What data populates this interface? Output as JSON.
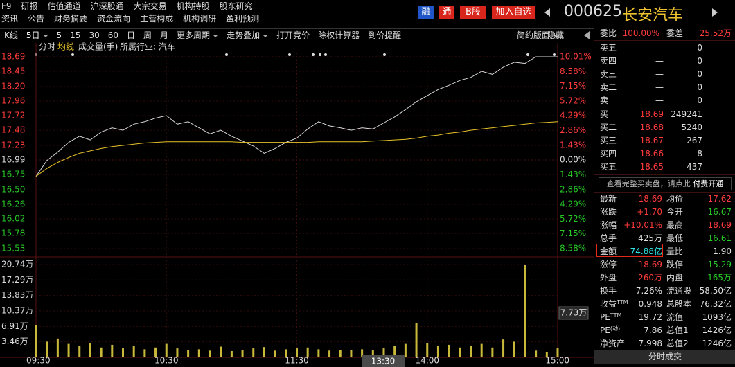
{
  "header": {
    "row1": [
      "F9",
      "研报",
      "估值通道",
      "沪深股通",
      "大宗交易",
      "机构持股",
      "股东研究"
    ],
    "row2": [
      "资讯",
      "公告",
      "财务摘要",
      "资金流向",
      "主营构成",
      "机构调研",
      "盈利预测"
    ],
    "buttons": [
      "融",
      "通",
      "B股",
      "加入自选"
    ],
    "code": "000625",
    "name": "长安汽车"
  },
  "toolbar": {
    "items": [
      "K线",
      "5日",
      "5",
      "15",
      "30",
      "60",
      "日",
      "周",
      "月",
      "更多周期",
      "走势叠加",
      "打开竞价",
      "除权计算器",
      "到价提醒"
    ],
    "right": [
      "简约版面",
      "隐藏"
    ]
  },
  "chart_data": {
    "type": "line",
    "industry": "所属行业: 汽车",
    "categories": [
      "09:30",
      null,
      null,
      null,
      null,
      null,
      null,
      null,
      null,
      null,
      null,
      null,
      "10:30",
      null,
      null,
      null,
      null,
      null,
      null,
      null,
      null,
      null,
      null,
      null,
      "11:30",
      null,
      null,
      null,
      null,
      null,
      null,
      null,
      null,
      null,
      null,
      null,
      "14:00",
      null,
      null,
      null,
      null,
      null,
      null,
      null,
      null,
      null,
      null,
      null,
      "15:00"
    ],
    "series": [
      {
        "name": "分时",
        "color": "#d8d8d8",
        "values": [
          16.72,
          16.98,
          17.12,
          17.28,
          17.38,
          17.32,
          17.45,
          17.52,
          17.48,
          17.58,
          17.62,
          17.68,
          17.72,
          17.58,
          17.62,
          17.52,
          17.42,
          17.48,
          17.38,
          17.3,
          17.22,
          17.1,
          17.18,
          17.28,
          17.35,
          17.5,
          17.62,
          17.55,
          17.52,
          17.48,
          17.52,
          17.5,
          17.6,
          17.7,
          17.82,
          17.95,
          18.05,
          18.15,
          18.22,
          18.3,
          18.35,
          18.45,
          18.4,
          18.52,
          18.6,
          18.58,
          18.69,
          18.69,
          18.69
        ]
      },
      {
        "name": "均线",
        "color": "#e6c229",
        "values": [
          16.72,
          16.85,
          16.95,
          17.03,
          17.1,
          17.14,
          17.18,
          17.21,
          17.23,
          17.25,
          17.27,
          17.28,
          17.29,
          17.29,
          17.29,
          17.29,
          17.29,
          17.29,
          17.29,
          17.28,
          17.28,
          17.28,
          17.28,
          17.28,
          17.28,
          17.28,
          17.29,
          17.29,
          17.29,
          17.29,
          17.29,
          17.3,
          17.31,
          17.32,
          17.33,
          17.35,
          17.38,
          17.4,
          17.43,
          17.45,
          17.48,
          17.5,
          17.52,
          17.54,
          17.56,
          17.58,
          17.6,
          17.61,
          17.62
        ]
      }
    ],
    "ylim": [
      15.53,
      18.69
    ],
    "yticks": [
      18.69,
      18.45,
      {
        "value": 18.2,
        "label": "18.20"
      },
      17.96,
      17.72,
      17.48,
      17.23,
      16.99,
      16.75,
      {
        "value": 16.5,
        "label": "16.50"
      },
      16.26,
      16.02,
      15.78,
      15.53
    ],
    "y2lim": [
      -8.58,
      10.01
    ],
    "y2ticks": [
      {
        "value": 10.01,
        "label": "10.01%"
      },
      {
        "value": 8.58,
        "label": "8.58%"
      },
      {
        "value": 7.15,
        "label": "7.15%"
      },
      {
        "value": 5.72,
        "label": "5.72%"
      },
      {
        "value": 4.29,
        "label": "4.29%"
      },
      {
        "value": 2.86,
        "label": "2.86%"
      },
      {
        "value": 1.43,
        "label": "1.43%"
      },
      {
        "value": 0,
        "label": "0.00%"
      },
      {
        "value": -1.43,
        "label": "1.43%"
      },
      {
        "value": -2.86,
        "label": "2.86%"
      },
      {
        "value": -4.29,
        "label": "4.29%"
      },
      {
        "value": -5.72,
        "label": "5.72%"
      },
      {
        "value": -7.15,
        "label": "7.15%"
      },
      {
        "value": -8.58,
        "label": "8.58%"
      }
    ],
    "volume": {
      "name": "成交量(手)",
      "color": "#c9b93a",
      "values": [
        7.2,
        3.5,
        4.2,
        3.0,
        2.5,
        3.2,
        2.2,
        2.8,
        2.0,
        2.5,
        1.8,
        2.2,
        3.0,
        2.0,
        1.6,
        1.8,
        1.5,
        2.4,
        1.4,
        1.6,
        2.0,
        2.3,
        1.5,
        1.8,
        2.0,
        2.2,
        1.8,
        1.5,
        1.6,
        1.7,
        1.8,
        1.6,
        2.0,
        2.5,
        3.0,
        7.7,
        3.2,
        2.6,
        2.8,
        2.2,
        2.5,
        3.0,
        2.2,
        4.0,
        3.5,
        20.6,
        1.5,
        1.2,
        2.0
      ],
      "ylim": [
        0,
        20.74
      ],
      "yticks": [
        {
          "value": 20.74,
          "label": "20.74万"
        },
        {
          "value": 17.29,
          "label": "17.29万"
        },
        {
          "value": 13.83,
          "label": "13.83万"
        },
        {
          "value": 10.37,
          "label": "10.37万"
        },
        {
          "value": 6.91,
          "label": "6.91万"
        },
        {
          "value": 3.46,
          "label": "3.46万"
        }
      ]
    },
    "cursor": {
      "time": "13:30",
      "volume": "7.73万"
    },
    "grid": true
  },
  "quote": {
    "ratio": [
      "委比",
      "100.00%",
      "委差",
      "25.52万"
    ],
    "asks": [
      [
        "卖五",
        "—",
        "0"
      ],
      [
        "卖四",
        "—",
        "0"
      ],
      [
        "卖三",
        "—",
        "0"
      ],
      [
        "卖二",
        "—",
        "0"
      ],
      [
        "卖一",
        "—",
        "0"
      ]
    ],
    "bids": [
      [
        "买一",
        "18.69",
        "249241"
      ],
      [
        "买二",
        "18.68",
        "5240"
      ],
      [
        "买三",
        "18.67",
        "267"
      ],
      [
        "买四",
        "18.66",
        "8"
      ],
      [
        "买五",
        "18.65",
        "437"
      ]
    ],
    "link": "查看完整买卖盘，请点此",
    "paid": "付费开通",
    "stats": [
      [
        "最新",
        "18.69",
        "均价",
        "17.62"
      ],
      [
        "涨跌",
        "+1.70",
        "今开",
        "16.67"
      ],
      [
        "涨幅",
        "+10.01%",
        "最高",
        "18.69"
      ],
      [
        "总手",
        "425万",
        "最低",
        "16.61"
      ],
      [
        "金额",
        "74.88亿",
        "量比",
        "1.90"
      ],
      [
        "涨停",
        "18.69",
        "跌停",
        "15.29"
      ],
      [
        "外盘",
        "260万",
        "内盘",
        "165万"
      ],
      [
        "换手",
        "7.26%",
        "流通股",
        "58.50亿"
      ],
      [
        "收益",
        "0.948",
        "总股本",
        "76.32亿"
      ],
      [
        "PE",
        "19.72",
        "流值",
        "1093亿"
      ],
      [
        "PE",
        "7.86",
        "总值1",
        "1426亿"
      ],
      [
        "净资产",
        "7.998",
        "总值2",
        "1246亿"
      ]
    ],
    "sups": [
      "TTM",
      "TTM",
      "(动)"
    ],
    "footer": "分时成交"
  }
}
